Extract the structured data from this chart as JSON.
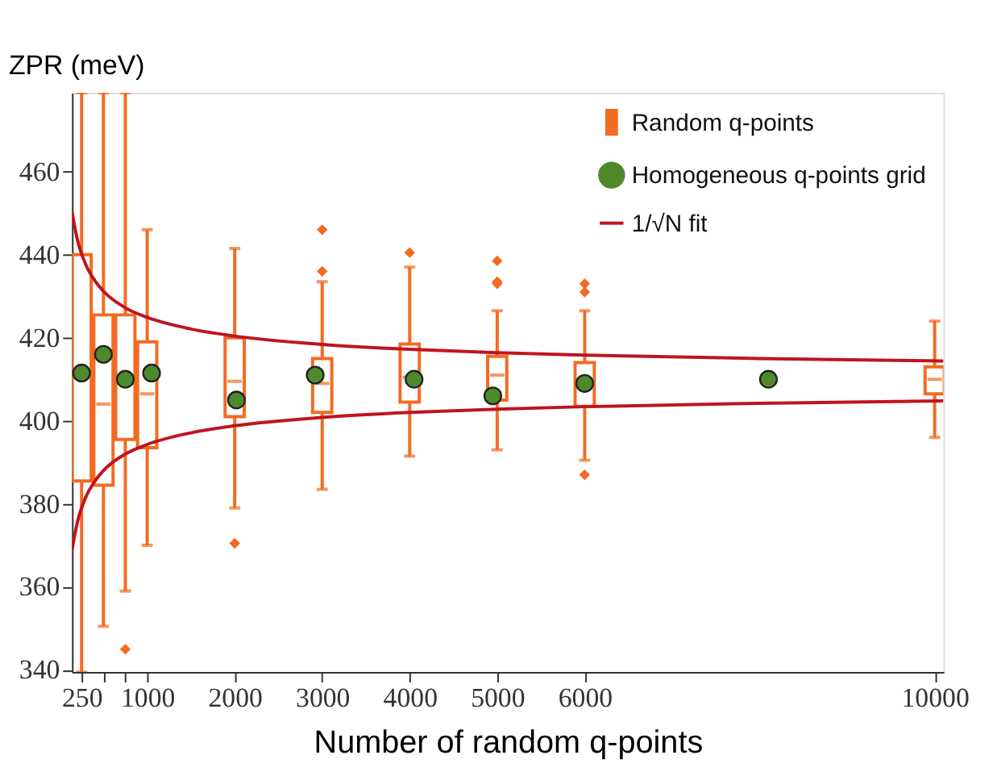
{
  "chart_data": {
    "type": "box",
    "xlabel": "Number of random q-points",
    "ylabel": "ZPR (meV)",
    "xlim": [
      140,
      10100
    ],
    "ylim": [
      339.5,
      479
    ],
    "xticks": [
      250,
      {
        "value": 500,
        "label": null
      },
      {
        "value": 750,
        "label": null
      },
      1000,
      2000,
      3000,
      4000,
      5000,
      6000,
      10000
    ],
    "yticks": [
      340,
      360,
      380,
      400,
      420,
      440,
      460
    ],
    "legend": "top right",
    "grid": false,
    "series": [
      {
        "name": "Random q-points",
        "type": "box",
        "color": "#f26b21",
        "x": [
          250,
          500,
          750,
          1000,
          2000,
          3000,
          4000,
          5000,
          6000,
          10000
        ],
        "boxes": [
          {
            "low": 339.5,
            "q1": 385.5,
            "median": 411,
            "q3": 440,
            "high": 479
          },
          {
            "low": 350.5,
            "q1": 384.5,
            "median": 404,
            "q3": 425.5,
            "high": 479
          },
          {
            "low": 359,
            "q1": 395.5,
            "median": 410,
            "q3": 425.5,
            "high": 479,
            "outliers": [
              345
            ]
          },
          {
            "low": 370,
            "q1": 393.5,
            "median": 406.5,
            "q3": 419,
            "high": 446
          },
          {
            "low": 379,
            "q1": 401,
            "median": 409.5,
            "q3": 420,
            "high": 441.5,
            "outliers": [
              370.5
            ]
          },
          {
            "low": 383.5,
            "q1": 402,
            "median": 409,
            "q3": 415,
            "high": 433.5,
            "outliers": [
              436,
              446
            ]
          },
          {
            "low": 391.5,
            "q1": 404.5,
            "median": 410.5,
            "q3": 418.5,
            "high": 437,
            "outliers": [
              440.5
            ]
          },
          {
            "low": 393,
            "q1": 405,
            "median": 411,
            "q3": 415.5,
            "high": 426.5,
            "outliers": [
              433,
              433.5,
              438.5
            ]
          },
          {
            "low": 390.5,
            "q1": 403.5,
            "median": 409,
            "q3": 414,
            "high": 426.5,
            "outliers": [
              387,
              431,
              433
            ]
          },
          {
            "low": 396,
            "q1": 406.5,
            "median": 410,
            "q3": 413,
            "high": 424
          }
        ]
      },
      {
        "name": "Homogeneous q-points grid",
        "type": "scatter",
        "marker": "circle",
        "color": "#4e8a2b",
        "x": [
          250,
          500,
          750,
          1050,
          2020,
          2920,
          4050,
          4950,
          6000,
          8100
        ],
        "values": [
          411.5,
          416,
          410,
          411.5,
          405,
          411,
          410,
          406,
          409,
          410
        ]
      },
      {
        "name": "1/√N fit",
        "type": "line",
        "color": "#c0141e",
        "x": [
          140,
          200,
          300,
          400,
          500,
          750,
          1000,
          1500,
          2000,
          3000,
          4000,
          5000,
          6000,
          8000,
          10100
        ],
        "values": [
          450.4,
          443.8,
          437.5,
          433.8,
          431.2,
          427.2,
          424.9,
          422.1,
          420.4,
          418.4,
          417.2,
          416.4,
          415.8,
          415.0,
          414.4
        ]
      },
      {
        "type": "line",
        "color": "#c0141e",
        "x": [
          140,
          200,
          300,
          400,
          500,
          750,
          1000,
          1500,
          2000,
          3000,
          4000,
          5000,
          6000,
          8000,
          10100
        ],
        "values": [
          368.8,
          375.4,
          381.7,
          385.4,
          388.0,
          392.0,
          394.3,
          397.1,
          398.8,
          400.8,
          402.0,
          402.8,
          403.4,
          404.2,
          404.8
        ]
      }
    ]
  }
}
